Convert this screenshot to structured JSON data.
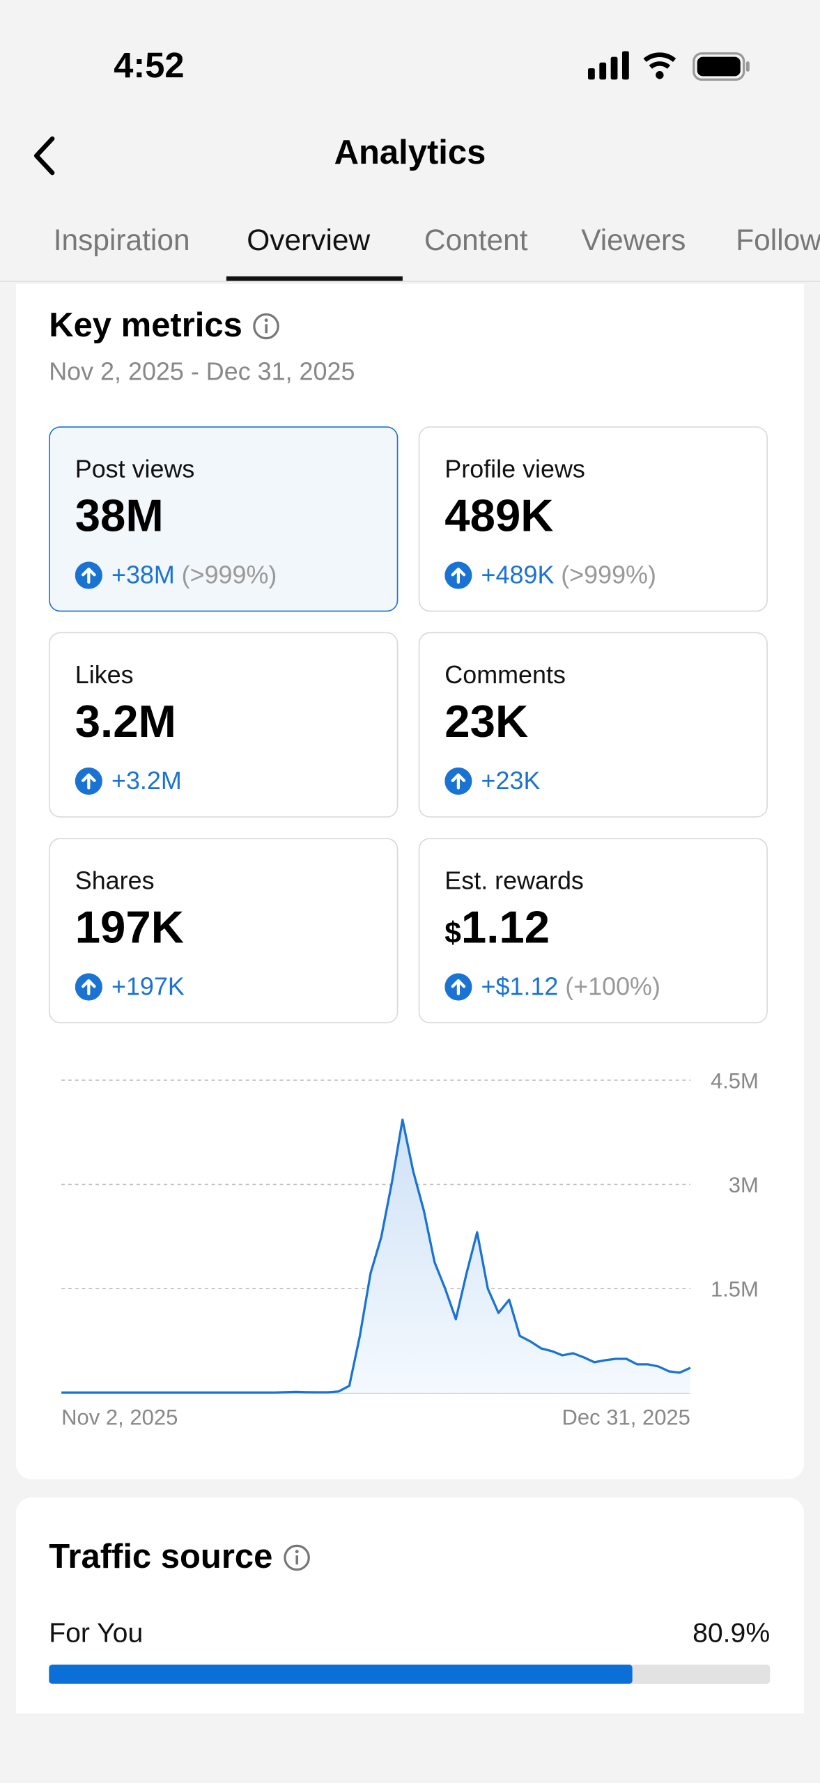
{
  "status": {
    "time": "4:52"
  },
  "header": {
    "title": "Analytics"
  },
  "tabs": {
    "items": [
      "Inspiration",
      "Overview",
      "Content",
      "Viewers",
      "Followers"
    ],
    "active": 1
  },
  "key_metrics": {
    "title": "Key metrics",
    "date_range": "Nov 2, 2025 - Dec 31, 2025",
    "cards": [
      {
        "label": "Post views",
        "value": "38M",
        "change": "+38M",
        "pct": "(>999%)"
      },
      {
        "label": "Profile views",
        "value": "489K",
        "change": "+489K",
        "pct": "(>999%)"
      },
      {
        "label": "Likes",
        "value": "3.2M",
        "change": "+3.2M"
      },
      {
        "label": "Comments",
        "value": "23K",
        "change": "+23K"
      },
      {
        "label": "Shares",
        "value": "197K",
        "change": "+197K"
      },
      {
        "label": "Est. rewards",
        "currency": "$",
        "value": "1.12",
        "change": "+$1.12",
        "pct": "(+100%)"
      }
    ],
    "active": 0
  },
  "chart_data": {
    "type": "line",
    "color": "#1a73d2",
    "categories": [
      "Nov 2, 2025",
      null,
      null,
      null,
      null,
      null,
      null,
      null,
      null,
      null,
      null,
      null,
      null,
      null,
      null,
      null,
      null,
      null,
      null,
      null,
      null,
      null,
      null,
      null,
      null,
      null,
      null,
      null,
      null,
      null,
      null,
      null,
      null,
      null,
      null,
      null,
      null,
      null,
      null,
      null,
      null,
      null,
      null,
      null,
      null,
      null,
      null,
      null,
      null,
      null,
      null,
      null,
      null,
      null,
      null,
      null,
      null,
      null,
      null,
      "Dec 31, 2025"
    ],
    "values": [
      5000,
      5000,
      5000,
      5000,
      5000,
      5000,
      5000,
      5000,
      5000,
      5000,
      5000,
      5000,
      5000,
      5000,
      5000,
      5000,
      5000,
      5000,
      5000,
      5000,
      5000,
      10000,
      15000,
      10000,
      8000,
      8000,
      20000,
      100000,
      820000,
      1720000,
      2240000,
      3030000,
      3930000,
      3190000,
      2620000,
      1880000,
      1500000,
      1060000,
      1720000,
      2310000,
      1500000,
      1150000,
      1340000,
      820000,
      740000,
      640000,
      600000,
      540000,
      570000,
      510000,
      440000,
      470000,
      490000,
      490000,
      410000,
      410000,
      380000,
      310000,
      290000,
      360000
    ],
    "ylim": [
      0,
      4500000
    ],
    "yticks": [
      {
        "value": 1500000,
        "label": "1.5M"
      },
      {
        "value": 3000000,
        "label": "3M"
      },
      {
        "value": 4500000,
        "label": "4.5M"
      }
    ],
    "grid": true
  },
  "traffic": {
    "title": "Traffic source",
    "label": "For You",
    "value": 80.9,
    "value_label": "80.9%"
  }
}
